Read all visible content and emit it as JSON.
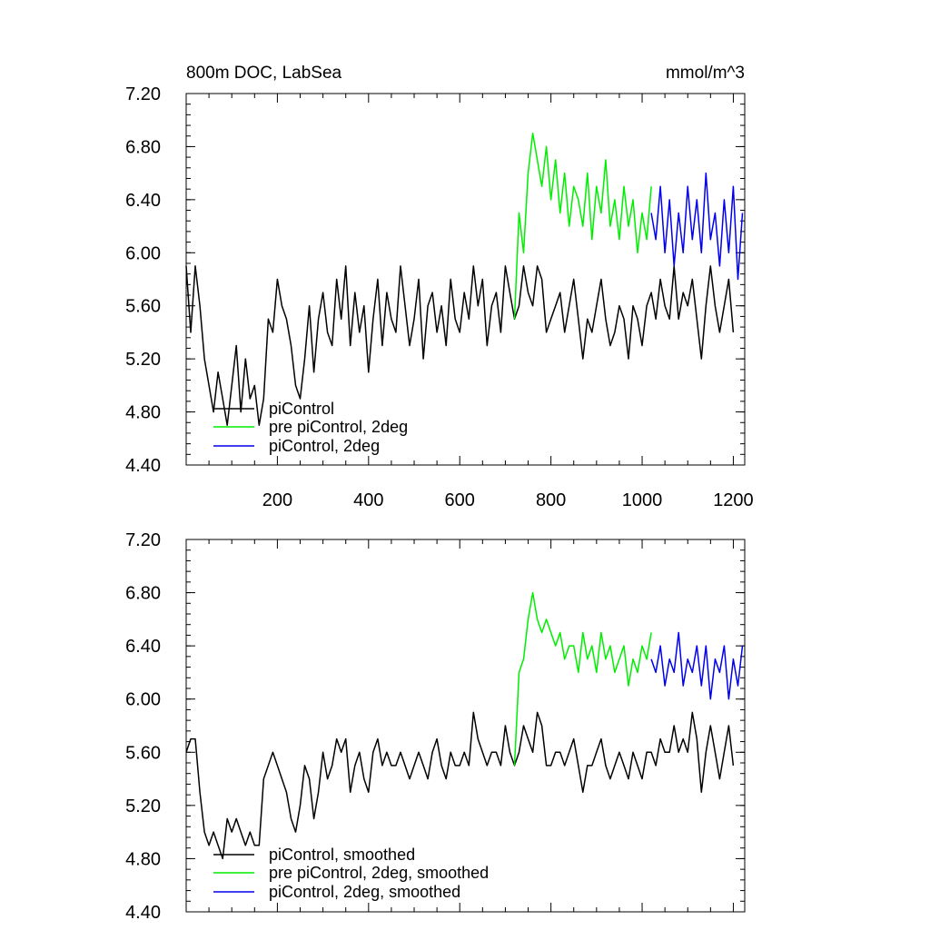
{
  "chart_data": [
    {
      "type": "line",
      "title": "800m DOC, LabSea",
      "units": "mmol/m^3",
      "xlim": [
        0,
        1225
      ],
      "ylim": [
        4.4,
        7.2
      ],
      "xticks": [
        200,
        400,
        600,
        800,
        1000,
        1200
      ],
      "xtick_labels": [
        "200",
        "400",
        "600",
        "800",
        "1000",
        "1200"
      ],
      "yticks": [
        4.4,
        4.8,
        5.2,
        5.6,
        6.0,
        6.4,
        6.8,
        7.2
      ],
      "ytick_labels": [
        "4.40",
        "4.80",
        "5.20",
        "5.60",
        "6.00",
        "6.40",
        "6.80",
        "7.20"
      ],
      "legend_position": "bottom-left",
      "series": [
        {
          "name": "piControl",
          "color": "#000000",
          "x": [
            0,
            10,
            20,
            30,
            40,
            50,
            60,
            70,
            80,
            90,
            100,
            110,
            120,
            130,
            140,
            150,
            160,
            170,
            180,
            190,
            200,
            210,
            220,
            230,
            240,
            250,
            260,
            270,
            280,
            290,
            300,
            310,
            320,
            330,
            340,
            350,
            360,
            370,
            380,
            390,
            400,
            410,
            420,
            430,
            440,
            450,
            460,
            470,
            480,
            490,
            500,
            510,
            520,
            530,
            540,
            550,
            560,
            570,
            580,
            590,
            600,
            610,
            620,
            630,
            640,
            650,
            660,
            670,
            680,
            690,
            700,
            710,
            720,
            730,
            740,
            750,
            760,
            770,
            780,
            790,
            800,
            810,
            820,
            830,
            840,
            850,
            860,
            870,
            880,
            890,
            900,
            910,
            920,
            930,
            940,
            950,
            960,
            970,
            980,
            990,
            1000,
            1010,
            1020,
            1030,
            1040,
            1050,
            1060,
            1070,
            1080,
            1090,
            1100,
            1110,
            1120,
            1130,
            1140,
            1150,
            1160,
            1170,
            1180,
            1190,
            1200
          ],
          "values": [
            5.9,
            5.4,
            5.9,
            5.6,
            5.2,
            5.0,
            4.8,
            5.1,
            4.9,
            4.7,
            5.0,
            5.3,
            4.8,
            5.2,
            4.9,
            5.0,
            4.7,
            4.9,
            5.5,
            5.4,
            5.8,
            5.6,
            5.5,
            5.3,
            5.0,
            4.9,
            5.2,
            5.6,
            5.1,
            5.5,
            5.7,
            5.4,
            5.3,
            5.8,
            5.5,
            5.9,
            5.3,
            5.7,
            5.4,
            5.6,
            5.1,
            5.5,
            5.8,
            5.3,
            5.7,
            5.5,
            5.4,
            5.9,
            5.6,
            5.3,
            5.5,
            5.8,
            5.2,
            5.6,
            5.7,
            5.4,
            5.6,
            5.3,
            5.8,
            5.5,
            5.4,
            5.7,
            5.5,
            5.9,
            5.6,
            5.8,
            5.3,
            5.6,
            5.7,
            5.4,
            5.9,
            5.7,
            5.5,
            5.6,
            5.9,
            5.7,
            5.6,
            5.9,
            5.8,
            5.4,
            5.5,
            5.6,
            5.7,
            5.4,
            5.6,
            5.8,
            5.5,
            5.2,
            5.5,
            5.4,
            5.6,
            5.8,
            5.5,
            5.3,
            5.4,
            5.6,
            5.5,
            5.2,
            5.6,
            5.5,
            5.3,
            5.6,
            5.7,
            5.5,
            5.8,
            5.6,
            5.5,
            5.9,
            5.5,
            5.7,
            5.6,
            5.8,
            5.5,
            5.2,
            5.6,
            5.9,
            5.6,
            5.4,
            5.6,
            5.8,
            5.4
          ]
        },
        {
          "name": "pre piControl, 2deg",
          "color": "#00ee00",
          "x": [
            720,
            730,
            740,
            750,
            760,
            770,
            780,
            790,
            800,
            810,
            820,
            830,
            840,
            850,
            860,
            870,
            880,
            890,
            900,
            910,
            920,
            930,
            940,
            950,
            960,
            970,
            980,
            990,
            1000,
            1010,
            1020
          ],
          "values": [
            5.5,
            6.3,
            6.0,
            6.6,
            6.9,
            6.7,
            6.5,
            6.8,
            6.4,
            6.7,
            6.3,
            6.6,
            6.2,
            6.5,
            6.4,
            6.2,
            6.6,
            6.1,
            6.5,
            6.3,
            6.7,
            6.2,
            6.4,
            6.1,
            6.5,
            6.2,
            6.4,
            6.0,
            6.3,
            6.1,
            6.5
          ]
        },
        {
          "name": "piControl, 2deg",
          "color": "#0000ee",
          "x": [
            1020,
            1030,
            1040,
            1050,
            1060,
            1070,
            1080,
            1090,
            1100,
            1110,
            1120,
            1130,
            1140,
            1150,
            1160,
            1170,
            1180,
            1190,
            1200,
            1210,
            1220
          ],
          "values": [
            6.3,
            6.1,
            6.5,
            6.0,
            6.4,
            5.9,
            6.3,
            6.0,
            6.5,
            6.1,
            6.4,
            6.0,
            6.6,
            6.1,
            6.3,
            5.9,
            6.4,
            6.0,
            6.5,
            5.8,
            6.3
          ]
        }
      ]
    },
    {
      "type": "line",
      "xlim": [
        0,
        1225
      ],
      "ylim": [
        4.4,
        7.2
      ],
      "yticks": [
        4.4,
        4.8,
        5.2,
        5.6,
        6.0,
        6.4,
        6.8,
        7.2
      ],
      "ytick_labels": [
        "4.40",
        "4.80",
        "5.20",
        "5.60",
        "6.00",
        "6.40",
        "6.80",
        "7.20"
      ],
      "legend_position": "bottom-left",
      "series": [
        {
          "name": "piControl, smoothed",
          "color": "#000000",
          "x": [
            0,
            10,
            20,
            30,
            40,
            50,
            60,
            70,
            80,
            90,
            100,
            110,
            120,
            130,
            140,
            150,
            160,
            170,
            180,
            190,
            200,
            210,
            220,
            230,
            240,
            250,
            260,
            270,
            280,
            290,
            300,
            310,
            320,
            330,
            340,
            350,
            360,
            370,
            380,
            390,
            400,
            410,
            420,
            430,
            440,
            450,
            460,
            470,
            480,
            490,
            500,
            510,
            520,
            530,
            540,
            550,
            560,
            570,
            580,
            590,
            600,
            610,
            620,
            630,
            640,
            650,
            660,
            670,
            680,
            690,
            700,
            710,
            720,
            730,
            740,
            750,
            760,
            770,
            780,
            790,
            800,
            810,
            820,
            830,
            840,
            850,
            860,
            870,
            880,
            890,
            900,
            910,
            920,
            930,
            940,
            950,
            960,
            970,
            980,
            990,
            1000,
            1010,
            1020,
            1030,
            1040,
            1050,
            1060,
            1070,
            1080,
            1090,
            1100,
            1110,
            1120,
            1130,
            1140,
            1150,
            1160,
            1170,
            1180,
            1190,
            1200
          ],
          "values": [
            5.6,
            5.7,
            5.7,
            5.3,
            5.0,
            4.9,
            5.0,
            4.9,
            4.8,
            5.1,
            5.0,
            5.1,
            5.0,
            4.9,
            5.0,
            4.9,
            4.9,
            5.4,
            5.5,
            5.6,
            5.5,
            5.4,
            5.3,
            5.1,
            5.0,
            5.2,
            5.5,
            5.4,
            5.1,
            5.3,
            5.6,
            5.4,
            5.5,
            5.7,
            5.6,
            5.7,
            5.3,
            5.5,
            5.6,
            5.4,
            5.3,
            5.6,
            5.7,
            5.5,
            5.6,
            5.5,
            5.5,
            5.6,
            5.5,
            5.4,
            5.5,
            5.6,
            5.5,
            5.4,
            5.6,
            5.7,
            5.5,
            5.4,
            5.6,
            5.5,
            5.5,
            5.6,
            5.5,
            5.9,
            5.7,
            5.6,
            5.5,
            5.6,
            5.6,
            5.5,
            5.8,
            5.6,
            5.5,
            5.6,
            5.8,
            5.7,
            5.6,
            5.9,
            5.8,
            5.5,
            5.5,
            5.6,
            5.6,
            5.5,
            5.6,
            5.7,
            5.5,
            5.3,
            5.5,
            5.5,
            5.6,
            5.7,
            5.5,
            5.4,
            5.5,
            5.6,
            5.5,
            5.4,
            5.6,
            5.5,
            5.4,
            5.6,
            5.6,
            5.5,
            5.7,
            5.6,
            5.6,
            5.8,
            5.6,
            5.7,
            5.6,
            5.9,
            5.7,
            5.3,
            5.6,
            5.8,
            5.6,
            5.4,
            5.6,
            5.8,
            5.5
          ]
        },
        {
          "name": "pre piControl, 2deg, smoothed",
          "color": "#00ee00",
          "x": [
            720,
            730,
            740,
            750,
            760,
            770,
            780,
            790,
            800,
            810,
            820,
            830,
            840,
            850,
            860,
            870,
            880,
            890,
            900,
            910,
            920,
            930,
            940,
            950,
            960,
            970,
            980,
            990,
            1000,
            1010,
            1020
          ],
          "values": [
            5.5,
            6.2,
            6.3,
            6.6,
            6.8,
            6.6,
            6.5,
            6.6,
            6.5,
            6.4,
            6.5,
            6.3,
            6.4,
            6.4,
            6.2,
            6.5,
            6.3,
            6.4,
            6.2,
            6.5,
            6.3,
            6.4,
            6.2,
            6.3,
            6.4,
            6.1,
            6.3,
            6.2,
            6.4,
            6.3,
            6.5
          ]
        },
        {
          "name": "piControl, 2deg, smoothed",
          "color": "#0000ee",
          "x": [
            1020,
            1030,
            1040,
            1050,
            1060,
            1070,
            1080,
            1090,
            1100,
            1110,
            1120,
            1130,
            1140,
            1150,
            1160,
            1170,
            1180,
            1190,
            1200,
            1210,
            1220
          ],
          "values": [
            6.3,
            6.2,
            6.4,
            6.1,
            6.3,
            6.2,
            6.5,
            6.1,
            6.3,
            6.2,
            6.4,
            6.1,
            6.4,
            6.0,
            6.3,
            6.2,
            6.4,
            6.0,
            6.3,
            6.1,
            6.4
          ]
        }
      ]
    }
  ]
}
